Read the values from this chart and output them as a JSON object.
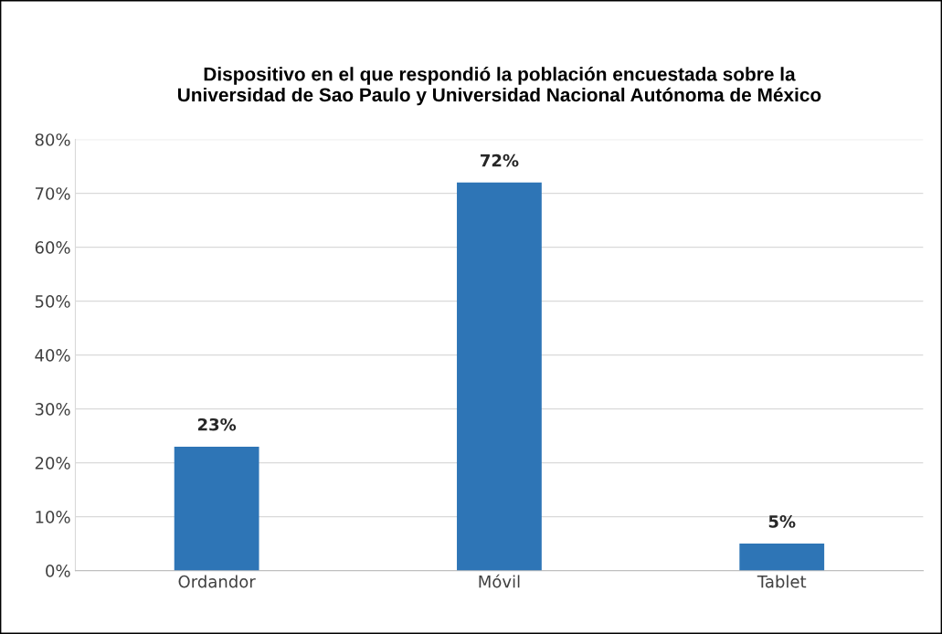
{
  "chart_data": {
    "type": "bar",
    "title": "Dispositivo en el que respondió la población encuestada sobre la\nUniversidad de Sao Paulo y Universidad Nacional Autónoma de México",
    "categories": [
      "Ordandor",
      "Móvil",
      "Tablet"
    ],
    "values": [
      23,
      72,
      5
    ],
    "value_labels": [
      "23%",
      "72%",
      "5%"
    ],
    "color": "#2e75b6",
    "ylim": [
      0,
      80
    ],
    "yticks": [
      {
        "value": 0,
        "label": "0%"
      },
      {
        "value": 10,
        "label": "10%"
      },
      {
        "value": 20,
        "label": "20%"
      },
      {
        "value": 30,
        "label": "30%"
      },
      {
        "value": 40,
        "label": "40%"
      },
      {
        "value": 50,
        "label": "50%"
      },
      {
        "value": 60,
        "label": "60%"
      },
      {
        "value": 70,
        "label": "70%"
      },
      {
        "value": 80,
        "label": "80%"
      }
    ],
    "grid": "y"
  }
}
